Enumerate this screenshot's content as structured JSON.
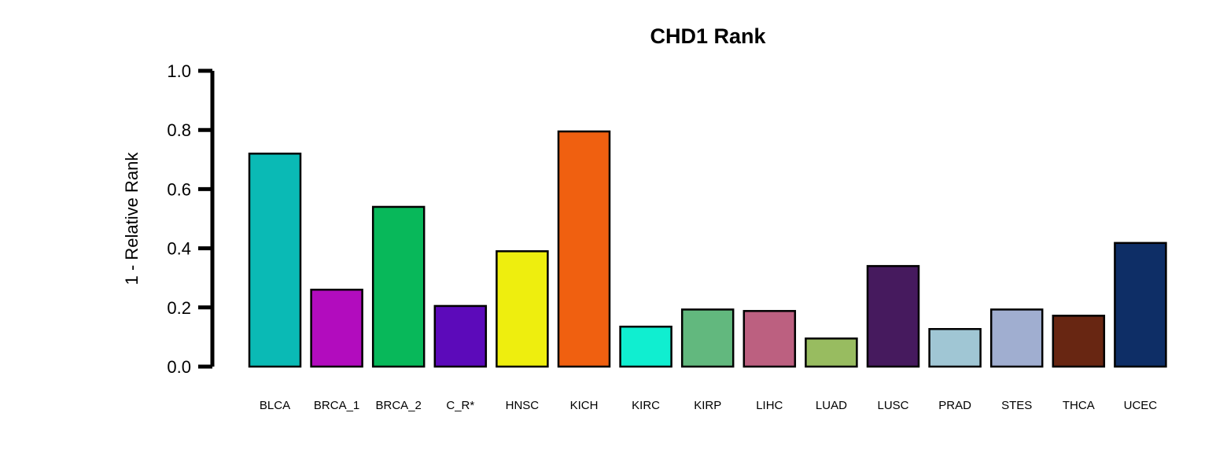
{
  "chart_data": {
    "type": "bar",
    "title": "CHD1 Rank",
    "xlabel": "",
    "ylabel": "1 - Relative Rank",
    "ylim": [
      0,
      1.0
    ],
    "yticks": [
      "0.0",
      "0.2",
      "0.4",
      "0.6",
      "0.8",
      "1.0"
    ],
    "ytick_values": [
      0,
      0.2,
      0.4,
      0.6,
      0.8,
      1.0
    ],
    "categories": [
      "BLCA",
      "BRCA_1",
      "BRCA_2",
      "C_R*",
      "HNSC",
      "KICH",
      "KIRC",
      "KIRP",
      "LIHC",
      "LUAD",
      "LUSC",
      "PRAD",
      "STES",
      "THCA",
      "UCEC"
    ],
    "values": [
      0.72,
      0.26,
      0.54,
      0.205,
      0.39,
      0.795,
      0.135,
      0.193,
      0.188,
      0.095,
      0.34,
      0.127,
      0.193,
      0.172,
      0.418
    ],
    "colors": [
      "#0ABAB5",
      "#B20CBE",
      "#08B85A",
      "#5C0ABA",
      "#EEEE0E",
      "#F06010",
      "#10EED0",
      "#62B87E",
      "#BC6080",
      "#98BC60",
      "#461A5E",
      "#A0C6D4",
      "#A0AED0",
      "#682612",
      "#0E2E66"
    ],
    "grid": false,
    "legend": "none"
  }
}
